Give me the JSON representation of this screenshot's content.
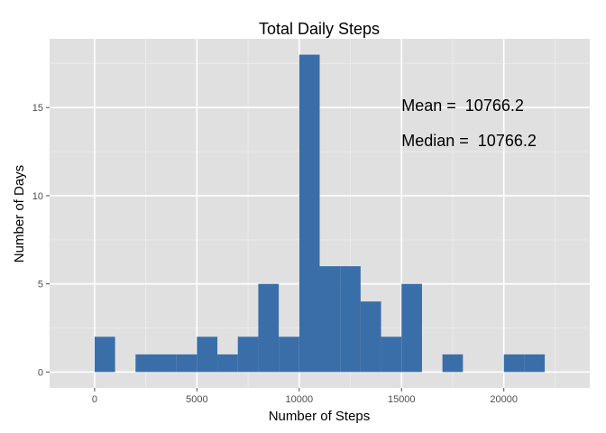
{
  "chart_data": {
    "type": "bar",
    "title": "Total Daily Steps",
    "xlabel": "Number of Steps",
    "ylabel": "Number of Days",
    "bin_width": 1000,
    "bins": [
      {
        "x0": 0,
        "x1": 1000,
        "count": 2
      },
      {
        "x0": 1000,
        "x1": 2000,
        "count": 0
      },
      {
        "x0": 2000,
        "x1": 3000,
        "count": 1
      },
      {
        "x0": 3000,
        "x1": 4000,
        "count": 1
      },
      {
        "x0": 4000,
        "x1": 5000,
        "count": 1
      },
      {
        "x0": 5000,
        "x1": 6000,
        "count": 2
      },
      {
        "x0": 6000,
        "x1": 7000,
        "count": 1
      },
      {
        "x0": 7000,
        "x1": 8000,
        "count": 2
      },
      {
        "x0": 8000,
        "x1": 9000,
        "count": 5
      },
      {
        "x0": 9000,
        "x1": 10000,
        "count": 2
      },
      {
        "x0": 10000,
        "x1": 11000,
        "count": 18
      },
      {
        "x0": 11000,
        "x1": 12000,
        "count": 6
      },
      {
        "x0": 12000,
        "x1": 13000,
        "count": 6
      },
      {
        "x0": 13000,
        "x1": 14000,
        "count": 4
      },
      {
        "x0": 14000,
        "x1": 15000,
        "count": 2
      },
      {
        "x0": 15000,
        "x1": 16000,
        "count": 5
      },
      {
        "x0": 16000,
        "x1": 17000,
        "count": 0
      },
      {
        "x0": 17000,
        "x1": 18000,
        "count": 1
      },
      {
        "x0": 18000,
        "x1": 19000,
        "count": 0
      },
      {
        "x0": 19000,
        "x1": 20000,
        "count": 0
      },
      {
        "x0": 20000,
        "x1": 21000,
        "count": 1
      },
      {
        "x0": 21000,
        "x1": 22000,
        "count": 1
      }
    ],
    "xlim": [
      -2200,
      24200
    ],
    "ylim": [
      -0.9,
      18.9
    ],
    "x_ticks": [
      0,
      5000,
      10000,
      15000,
      20000
    ],
    "x_tick_labels": [
      "0",
      "5000",
      "10000",
      "15000",
      "20000"
    ],
    "y_ticks": [
      0,
      5,
      10,
      15
    ],
    "y_tick_labels": [
      "0",
      "5",
      "10",
      "15"
    ],
    "annotations": [
      {
        "text": "Mean =  10766.2",
        "x": 15000,
        "y": 14.8
      },
      {
        "text": "Median =  10766.2",
        "x": 15000,
        "y": 12.8
      }
    ],
    "grid": true,
    "legend": "none",
    "colors": {
      "bar": "#3a6ea8",
      "panel": "#e0e0e0",
      "grid_major": "#ffffff",
      "grid_minor": "#ebebeb",
      "tick": "#4d4d4d"
    }
  }
}
